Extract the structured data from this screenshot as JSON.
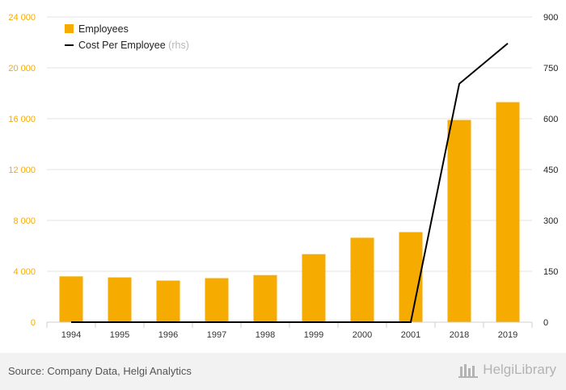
{
  "chart_data": {
    "type": "bar",
    "categories": [
      "1994",
      "1995",
      "1996",
      "1997",
      "1998",
      "1999",
      "2000",
      "2001",
      "2018",
      "2019"
    ],
    "series": [
      {
        "name": "Employees",
        "type": "bar",
        "axis": "left",
        "color": "#f5ab00",
        "values": [
          3600,
          3520,
          3270,
          3460,
          3700,
          5350,
          6640,
          7080,
          15900,
          17300
        ]
      },
      {
        "name": "Cost Per Employee",
        "legend_suffix": "(rhs)",
        "type": "line",
        "axis": "right",
        "color": "#000000",
        "values": [
          0,
          0,
          0,
          0,
          0,
          0,
          0,
          0,
          703,
          822
        ]
      }
    ],
    "left_axis": {
      "ylim": [
        0,
        24000
      ],
      "ticks": [
        0,
        4000,
        8000,
        12000,
        16000,
        20000,
        24000
      ],
      "tick_labels": [
        "0",
        "4 000",
        "8 000",
        "12 000",
        "16 000",
        "20 000",
        "24 000"
      ],
      "label_color": "#f5ab00"
    },
    "right_axis": {
      "ylim": [
        0,
        900
      ],
      "ticks": [
        0,
        150,
        300,
        450,
        600,
        750,
        900
      ],
      "tick_labels": [
        "0",
        "150",
        "300",
        "450",
        "600",
        "750",
        "900"
      ]
    },
    "grid": true,
    "legend_position": "top-left"
  },
  "footer": {
    "source": "Source: Company Data, Helgi Analytics",
    "brand": "HelgiLibrary"
  }
}
